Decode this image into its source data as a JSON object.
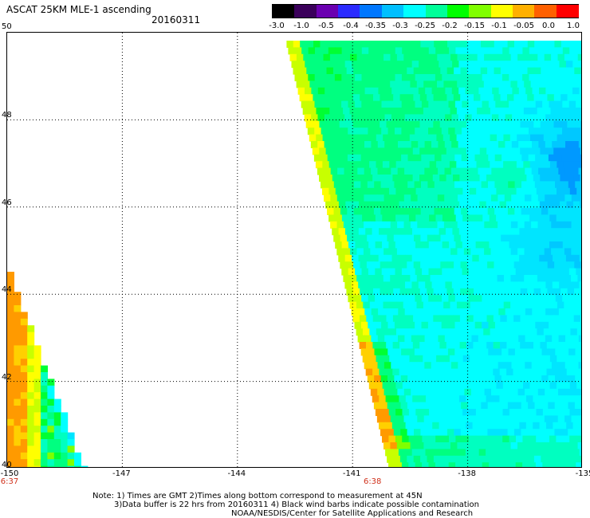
{
  "header": {
    "title": "ASCAT 25KM MLE-1 ascending",
    "date": "20160311"
  },
  "colorbar": {
    "ticks": [
      "-3.0",
      "-1.0",
      "-0.5",
      "-0.4",
      "-0.35",
      "-0.3",
      "-0.25",
      "-0.2",
      "-0.15",
      "-0.1",
      "-0.05",
      "0.0",
      "1.0"
    ],
    "colors": [
      "#000000",
      "#3a005a",
      "#6a00b0",
      "#2b2bff",
      "#0077ff",
      "#00bfff",
      "#00ffff",
      "#00ff99",
      "#00ff00",
      "#80ff00",
      "#ffff00",
      "#ffb000",
      "#ff6000",
      "#ff0000"
    ]
  },
  "map": {
    "lat_labels": [
      "50",
      "48",
      "46",
      "44",
      "42",
      "40"
    ],
    "lon_labels": [
      "-150",
      "-147",
      "-144",
      "-141",
      "-138",
      "-135"
    ],
    "time_labels": [
      "6:37",
      "6:38"
    ],
    "grid": "dotted"
  },
  "notes": [
    "Note: 1) Times are GMT 2)Times along bottom correspond to measurement at 45N",
    "3)Data buffer is 22 hrs from 20160311 4) Black wind barbs indicate possible contamination",
    "NOAA/NESDIS/Center for Satellite Applications and Research"
  ]
}
